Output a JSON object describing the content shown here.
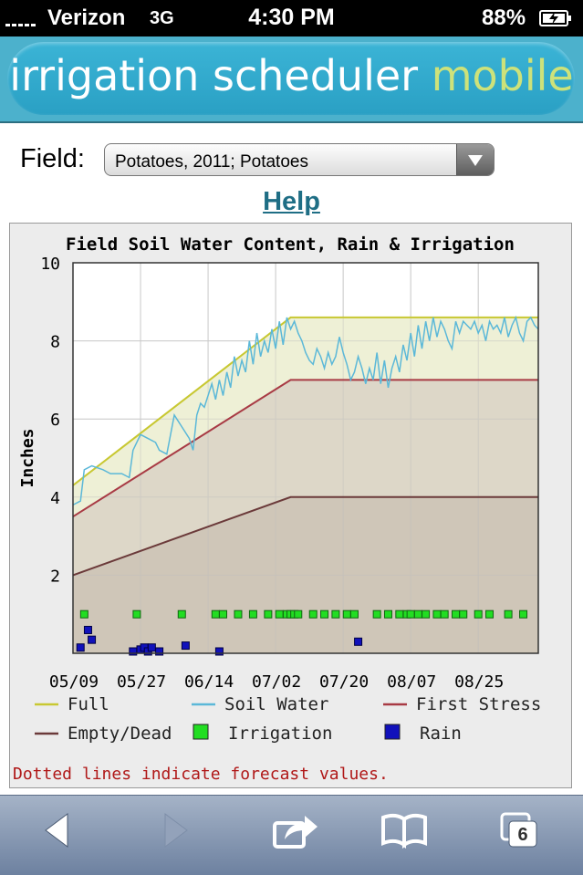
{
  "status_bar": {
    "carrier": "Verizon",
    "network": "3G",
    "time": "4:30 PM",
    "battery": "88%"
  },
  "banner": {
    "title_main": "irrigation scheduler",
    "title_accent": "mobile"
  },
  "field": {
    "label": "Field:",
    "selected": "Potatoes, 2011; Potatoes"
  },
  "help_link": "Help",
  "colors": {
    "full": "#c8c832",
    "soil_water": "#5bb8d8",
    "first_stress": "#a83a44",
    "empty_dead": "#6b3a3a",
    "irrigation": "#22dd22",
    "rain": "#1111bb",
    "note": "#b01818"
  },
  "toolbar": {
    "icons": [
      "back-icon",
      "forward-icon",
      "share-icon",
      "bookmarks-icon",
      "tabs-icon"
    ],
    "tab_count": "6"
  },
  "chart_data": {
    "type": "line",
    "title": "Field Soil Water Content, Rain & Irrigation",
    "ylabel": "Inches",
    "ylim": [
      0,
      10
    ],
    "yticks": [
      "2",
      "4",
      "6",
      "8",
      "10"
    ],
    "xticks": [
      "05/09",
      "05/27",
      "06/14",
      "07/02",
      "07/20",
      "08/07",
      "08/25"
    ],
    "grid": true,
    "series": [
      {
        "name": "Full",
        "x": [
          0,
          58,
          124
        ],
        "y": [
          4.3,
          8.6,
          8.6
        ]
      },
      {
        "name": "First Stress",
        "x": [
          0,
          58,
          124
        ],
        "y": [
          3.5,
          7.0,
          7.0
        ]
      },
      {
        "name": "Empty/Dead",
        "x": [
          0,
          58,
          124
        ],
        "y": [
          2.0,
          4.0,
          4.0
        ]
      },
      {
        "name": "Soil Water",
        "x": [
          0,
          2,
          3,
          5,
          8,
          10,
          13,
          15,
          16,
          18,
          20,
          22,
          23,
          25,
          27,
          29,
          31,
          32,
          33,
          34,
          35,
          37,
          38,
          39,
          40,
          41,
          42,
          43,
          44,
          45,
          46,
          47,
          48,
          49,
          50,
          51,
          52,
          53,
          54,
          55,
          56,
          57,
          58,
          59,
          60,
          61,
          62,
          63,
          64,
          65,
          66,
          67,
          68,
          69,
          70,
          71,
          72,
          73,
          74,
          75,
          76,
          77,
          78,
          79,
          80,
          81,
          82,
          83,
          84,
          85,
          86,
          87,
          88,
          89,
          90,
          91,
          92,
          93,
          94,
          95,
          96,
          97,
          98,
          99,
          100,
          101,
          102,
          103,
          104,
          105,
          106,
          107,
          108,
          109,
          110,
          111,
          112,
          113,
          114,
          115,
          116,
          117,
          118,
          119,
          120,
          121,
          122,
          123,
          124
        ],
        "y": [
          3.8,
          3.9,
          4.7,
          4.8,
          4.7,
          4.6,
          4.6,
          4.5,
          5.2,
          5.6,
          5.5,
          5.4,
          5.2,
          5.1,
          6.1,
          5.8,
          5.5,
          5.2,
          6.1,
          6.4,
          6.3,
          6.9,
          6.5,
          7.0,
          6.6,
          7.2,
          6.8,
          7.6,
          7.1,
          7.5,
          7.2,
          8.0,
          7.4,
          8.2,
          7.6,
          8.0,
          7.7,
          8.3,
          7.8,
          8.5,
          7.9,
          8.6,
          8.3,
          8.5,
          8.2,
          8.0,
          7.7,
          7.5,
          7.4,
          7.8,
          7.6,
          7.3,
          7.7,
          7.4,
          7.6,
          8.1,
          7.7,
          7.4,
          7.0,
          7.2,
          7.6,
          7.3,
          6.9,
          7.3,
          7.0,
          7.7,
          6.9,
          7.5,
          6.8,
          7.3,
          7.6,
          7.2,
          7.9,
          7.5,
          8.2,
          7.6,
          8.4,
          7.8,
          8.5,
          8.0,
          8.6,
          8.1,
          8.5,
          8.3,
          8.0,
          7.8,
          8.5,
          8.2,
          8.5,
          8.4,
          8.3,
          8.5,
          8.2,
          8.4,
          8.0,
          8.5,
          8.3,
          8.4,
          8.2,
          8.6,
          8.1,
          8.4,
          8.6,
          8.2,
          8.0,
          8.5,
          8.6,
          8.4,
          8.3
        ]
      },
      {
        "name": "Irrigation",
        "marker": "square",
        "x": [
          3,
          17,
          29,
          38,
          40,
          44,
          48,
          52,
          55,
          57,
          58,
          59,
          60,
          64,
          67,
          70,
          73,
          75,
          81,
          84,
          87,
          89,
          90,
          92,
          94,
          97,
          99,
          102,
          104,
          108,
          111,
          116,
          120
        ],
        "y": [
          1,
          1,
          1,
          1,
          1,
          1,
          1,
          1,
          1,
          1,
          1,
          1,
          1,
          1,
          1,
          1,
          1,
          1,
          1,
          1,
          1,
          1,
          1,
          1,
          1,
          1,
          1,
          1,
          1,
          1,
          1,
          1,
          1
        ]
      },
      {
        "name": "Rain",
        "marker": "square",
        "x": [
          2,
          4,
          5,
          16,
          18,
          19,
          20,
          21,
          23,
          30,
          39,
          76
        ],
        "y": [
          0.1,
          0.55,
          0.3,
          0.0,
          0.05,
          0.1,
          0.0,
          0.1,
          0.0,
          0.15,
          0.0,
          0.25
        ]
      }
    ],
    "legend": {
      "placement": "bottom",
      "items": [
        {
          "label": "Full",
          "kind": "line",
          "color": "#c8c832"
        },
        {
          "label": "Soil Water",
          "kind": "line",
          "color": "#5bb8d8"
        },
        {
          "label": "First Stress",
          "kind": "line",
          "color": "#a83a44"
        },
        {
          "label": "Empty/Dead",
          "kind": "line",
          "color": "#6b3a3a"
        },
        {
          "label": "Irrigation",
          "kind": "square",
          "color": "#22dd22"
        },
        {
          "label": "Rain",
          "kind": "square",
          "color": "#1111bb"
        }
      ]
    },
    "note": "Dotted lines indicate forecast values."
  }
}
